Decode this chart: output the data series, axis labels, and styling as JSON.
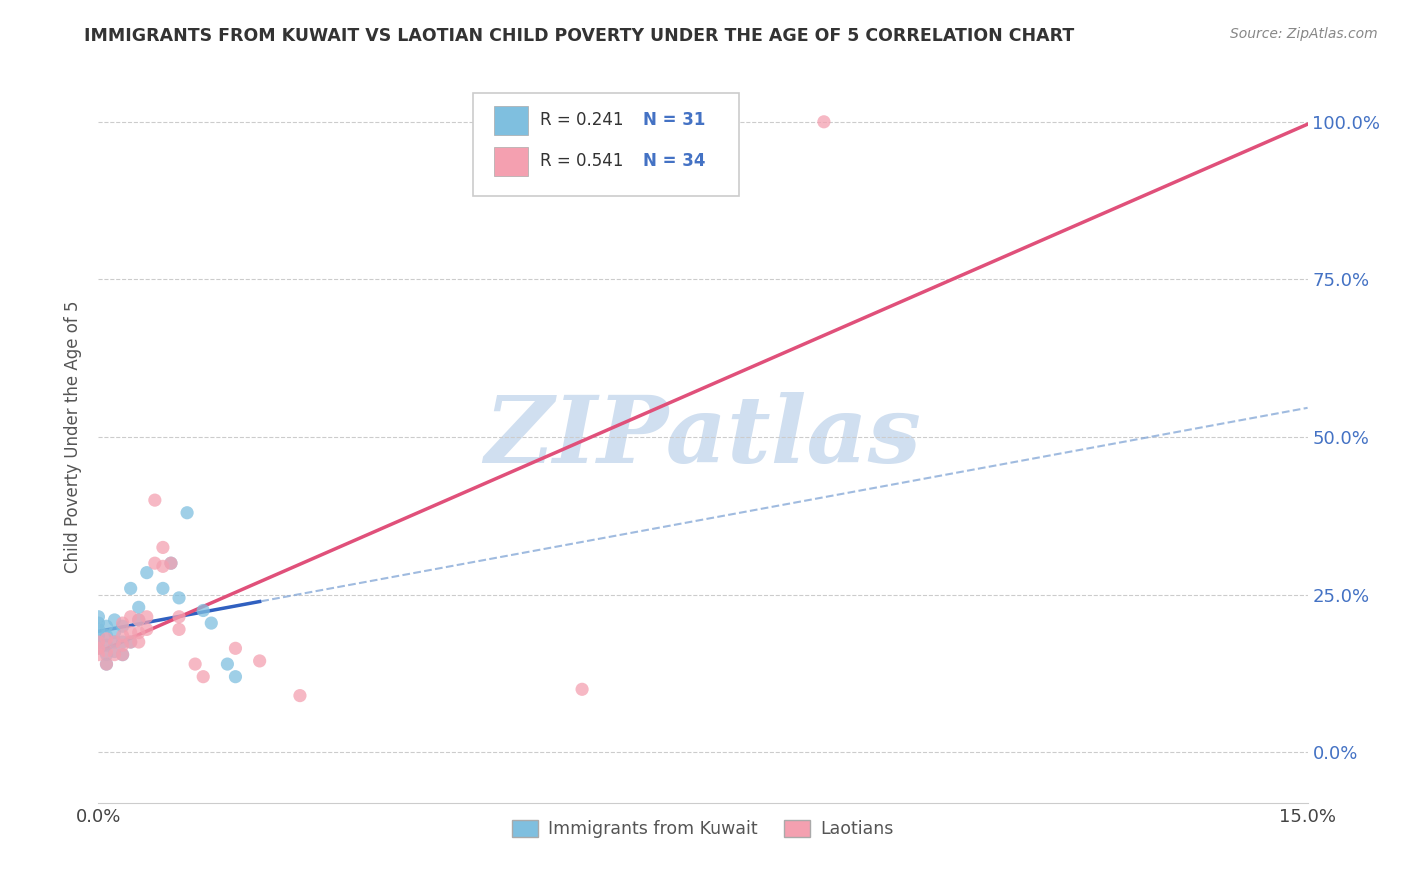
{
  "title": "IMMIGRANTS FROM KUWAIT VS LAOTIAN CHILD POVERTY UNDER THE AGE OF 5 CORRELATION CHART",
  "source": "Source: ZipAtlas.com",
  "ylabel": "Child Poverty Under the Age of 5",
  "legend_label1": "Immigrants from Kuwait",
  "legend_label2": "Laotians",
  "blue_color": "#7fbfdf",
  "pink_color": "#f4a0b0",
  "blue_line_color": "#3060c0",
  "pink_line_color": "#e0507a",
  "blue_dash_color": "#88aad8",
  "xmin": 0.0,
  "xmax": 0.15,
  "ymin": -0.08,
  "ymax": 1.08,
  "yticks": [
    0.0,
    0.25,
    0.5,
    0.75,
    1.0
  ],
  "ytick_labels_right": [
    "0.0%",
    "25.0%",
    "50.0%",
    "75.0%",
    "100.0%"
  ],
  "kuwait_x": [
    0.0,
    0.0,
    0.0,
    0.0,
    0.0,
    0.0,
    0.001,
    0.001,
    0.001,
    0.001,
    0.001,
    0.002,
    0.002,
    0.002,
    0.002,
    0.003,
    0.003,
    0.003,
    0.004,
    0.004,
    0.005,
    0.005,
    0.006,
    0.008,
    0.009,
    0.01,
    0.011,
    0.013,
    0.014,
    0.016,
    0.017
  ],
  "kuwait_y": [
    0.175,
    0.185,
    0.195,
    0.205,
    0.215,
    0.165,
    0.14,
    0.155,
    0.17,
    0.185,
    0.2,
    0.16,
    0.175,
    0.19,
    0.21,
    0.155,
    0.175,
    0.2,
    0.175,
    0.26,
    0.21,
    0.23,
    0.285,
    0.26,
    0.3,
    0.245,
    0.38,
    0.225,
    0.205,
    0.14,
    0.12
  ],
  "laotian_x": [
    0.0,
    0.0,
    0.0,
    0.001,
    0.001,
    0.001,
    0.002,
    0.002,
    0.003,
    0.003,
    0.003,
    0.003,
    0.004,
    0.004,
    0.004,
    0.005,
    0.005,
    0.005,
    0.006,
    0.006,
    0.007,
    0.007,
    0.008,
    0.008,
    0.009,
    0.01,
    0.01,
    0.012,
    0.013,
    0.017,
    0.02,
    0.025,
    0.06,
    0.09
  ],
  "laotian_y": [
    0.155,
    0.165,
    0.175,
    0.14,
    0.16,
    0.18,
    0.155,
    0.175,
    0.155,
    0.17,
    0.185,
    0.205,
    0.175,
    0.19,
    0.215,
    0.175,
    0.19,
    0.21,
    0.195,
    0.215,
    0.3,
    0.4,
    0.295,
    0.325,
    0.3,
    0.195,
    0.215,
    0.14,
    0.12,
    0.165,
    0.145,
    0.09,
    0.1,
    1.0
  ],
  "watermark_text": "ZIPatlas",
  "watermark_color": "#d0dff0"
}
